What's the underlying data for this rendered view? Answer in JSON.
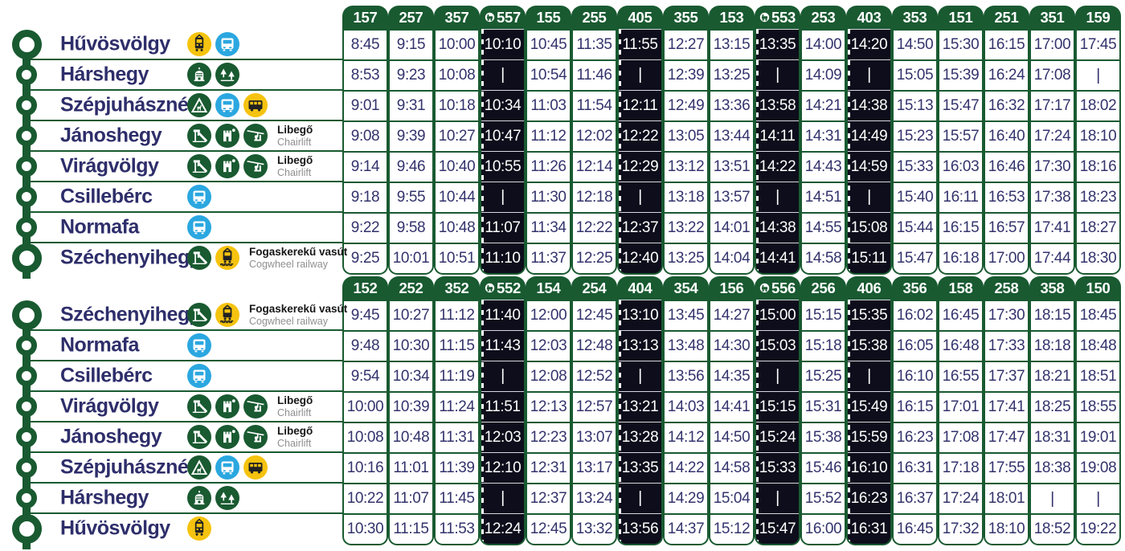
{
  "colors": {
    "brand_green": "#195a31",
    "time_navy": "#33336d",
    "steam_column_black": "#0d0d1b",
    "bus_blue": "#2ba7e0",
    "tram_yellow": "#f5c30f"
  },
  "notes": {
    "chairlift": {
      "primary": "Libegő",
      "secondary": "Chairlift"
    },
    "cogwheel": {
      "primary": "Fogaskerekű vasút",
      "secondary": "Cogwheel railway"
    }
  },
  "tables": [
    {
      "direction": "Hűvösvölgy → Széchenyihegy",
      "trains": [
        {
          "number": "157",
          "dark": false,
          "steam": false
        },
        {
          "number": "257",
          "dark": false,
          "steam": false
        },
        {
          "number": "357",
          "dark": false,
          "steam": false
        },
        {
          "number": "557",
          "dark": true,
          "steam": true
        },
        {
          "number": "155",
          "dark": false,
          "steam": false
        },
        {
          "number": "255",
          "dark": false,
          "steam": false
        },
        {
          "number": "405",
          "dark": true,
          "steam": false
        },
        {
          "number": "355",
          "dark": false,
          "steam": false
        },
        {
          "number": "153",
          "dark": false,
          "steam": false
        },
        {
          "number": "553",
          "dark": true,
          "steam": true
        },
        {
          "number": "253",
          "dark": false,
          "steam": false
        },
        {
          "number": "403",
          "dark": true,
          "steam": false
        },
        {
          "number": "353",
          "dark": false,
          "steam": false
        },
        {
          "number": "151",
          "dark": false,
          "steam": false
        },
        {
          "number": "251",
          "dark": false,
          "steam": false
        },
        {
          "number": "351",
          "dark": false,
          "steam": false
        },
        {
          "number": "159",
          "dark": false,
          "steam": false
        }
      ],
      "rows": [
        {
          "station": "Hűvösvölgy",
          "terminal": true,
          "icons": [
            "tram-yellow",
            "bus-blue"
          ],
          "note": null,
          "times": [
            "8:45",
            "9:15",
            "10:00",
            "10:10",
            "10:45",
            "11:35",
            "11:55",
            "12:27",
            "13:15",
            "13:35",
            "14:00",
            "14:20",
            "14:50",
            "15:30",
            "16:15",
            "17:00",
            "17:45"
          ]
        },
        {
          "station": "Hárshegy",
          "terminal": false,
          "icons": [
            "tower-green",
            "forest-green"
          ],
          "note": null,
          "times": [
            "8:53",
            "9:23",
            "10:08",
            "|",
            "10:54",
            "11:46",
            "|",
            "12:39",
            "13:25",
            "|",
            "14:09",
            "|",
            "15:05",
            "15:39",
            "16:24",
            "17:08",
            "|"
          ]
        },
        {
          "station": "Szépjuhászné",
          "terminal": false,
          "icons": [
            "house-green",
            "bus-blue",
            "bus-yellow"
          ],
          "note": null,
          "times": [
            "9:01",
            "9:31",
            "10:18",
            "10:34",
            "11:03",
            "11:54",
            "12:11",
            "12:49",
            "13:36",
            "13:58",
            "14:21",
            "14:38",
            "15:13",
            "15:47",
            "16:32",
            "17:17",
            "18:02"
          ]
        },
        {
          "station": "Jánoshegy",
          "terminal": false,
          "icons": [
            "playground-green",
            "lookout-green",
            "chairlift-green"
          ],
          "note": "chairlift",
          "times": [
            "9:08",
            "9:39",
            "10:27",
            "10:47",
            "11:12",
            "12:02",
            "12:22",
            "13:05",
            "13:44",
            "14:11",
            "14:31",
            "14:49",
            "15:23",
            "15:57",
            "16:40",
            "17:24",
            "18:10"
          ]
        },
        {
          "station": "Virágvölgy",
          "terminal": false,
          "icons": [
            "playground-green",
            "lookout-green",
            "chairlift-green"
          ],
          "note": "chairlift",
          "times": [
            "9:14",
            "9:46",
            "10:40",
            "10:55",
            "11:26",
            "12:14",
            "12:29",
            "13:12",
            "13:51",
            "14:22",
            "14:43",
            "14:59",
            "15:33",
            "16:03",
            "16:46",
            "17:30",
            "18:16"
          ]
        },
        {
          "station": "Csillebérc",
          "terminal": false,
          "icons": [
            "bus-blue"
          ],
          "note": null,
          "times": [
            "9:18",
            "9:55",
            "10:44",
            "|",
            "11:30",
            "12:18",
            "|",
            "13:18",
            "13:57",
            "|",
            "14:51",
            "|",
            "15:40",
            "16:11",
            "16:53",
            "17:38",
            "18:23"
          ]
        },
        {
          "station": "Normafa",
          "terminal": false,
          "icons": [
            "bus-blue"
          ],
          "note": null,
          "times": [
            "9:22",
            "9:58",
            "10:48",
            "11:07",
            "11:34",
            "12:22",
            "12:37",
            "13:22",
            "14:01",
            "14:38",
            "14:55",
            "15:08",
            "15:44",
            "16:15",
            "16:57",
            "17:41",
            "18:27"
          ]
        },
        {
          "station": "Széchenyihegy",
          "terminal": true,
          "icons": [
            "playground-green",
            "cogwheel-yellow"
          ],
          "note": "cogwheel",
          "times": [
            "9:25",
            "10:01",
            "10:51",
            "11:10",
            "11:37",
            "12:25",
            "12:40",
            "13:25",
            "14:04",
            "14:41",
            "14:58",
            "15:11",
            "15:47",
            "16:18",
            "17:00",
            "17:44",
            "18:30"
          ]
        }
      ]
    },
    {
      "direction": "Széchenyihegy → Hűvösvölgy",
      "trains": [
        {
          "number": "152",
          "dark": false,
          "steam": false
        },
        {
          "number": "252",
          "dark": false,
          "steam": false
        },
        {
          "number": "352",
          "dark": false,
          "steam": false
        },
        {
          "number": "552",
          "dark": true,
          "steam": true
        },
        {
          "number": "154",
          "dark": false,
          "steam": false
        },
        {
          "number": "254",
          "dark": false,
          "steam": false
        },
        {
          "number": "404",
          "dark": true,
          "steam": false
        },
        {
          "number": "354",
          "dark": false,
          "steam": false
        },
        {
          "number": "156",
          "dark": false,
          "steam": false
        },
        {
          "number": "556",
          "dark": true,
          "steam": true
        },
        {
          "number": "256",
          "dark": false,
          "steam": false
        },
        {
          "number": "406",
          "dark": true,
          "steam": false
        },
        {
          "number": "356",
          "dark": false,
          "steam": false
        },
        {
          "number": "158",
          "dark": false,
          "steam": false
        },
        {
          "number": "258",
          "dark": false,
          "steam": false
        },
        {
          "number": "358",
          "dark": false,
          "steam": false
        },
        {
          "number": "150",
          "dark": false,
          "steam": false
        }
      ],
      "rows": [
        {
          "station": "Széchenyihegy",
          "terminal": true,
          "icons": [
            "playground-green",
            "cogwheel-yellow"
          ],
          "note": "cogwheel",
          "times": [
            "9:45",
            "10:27",
            "11:12",
            "11:40",
            "12:00",
            "12:45",
            "13:10",
            "13:45",
            "14:27",
            "15:00",
            "15:15",
            "15:35",
            "16:02",
            "16:45",
            "17:30",
            "18:15",
            "18:45"
          ]
        },
        {
          "station": "Normafa",
          "terminal": false,
          "icons": [
            "bus-blue"
          ],
          "note": null,
          "times": [
            "9:48",
            "10:30",
            "11:15",
            "11:43",
            "12:03",
            "12:48",
            "13:13",
            "13:48",
            "14:30",
            "15:03",
            "15:18",
            "15:38",
            "16:05",
            "16:48",
            "17:33",
            "18:18",
            "18:48"
          ]
        },
        {
          "station": "Csillebérc",
          "terminal": false,
          "icons": [
            "bus-blue"
          ],
          "note": null,
          "times": [
            "9:54",
            "10:34",
            "11:19",
            "|",
            "12:08",
            "12:52",
            "|",
            "13:56",
            "14:35",
            "|",
            "15:25",
            "|",
            "16:10",
            "16:55",
            "17:37",
            "18:21",
            "18:51"
          ]
        },
        {
          "station": "Virágvölgy",
          "terminal": false,
          "icons": [
            "playground-green",
            "lookout-green",
            "chairlift-green"
          ],
          "note": "chairlift",
          "times": [
            "10:00",
            "10:39",
            "11:24",
            "11:51",
            "12:13",
            "12:57",
            "13:21",
            "14:03",
            "14:41",
            "15:15",
            "15:31",
            "15:49",
            "16:15",
            "17:01",
            "17:41",
            "18:25",
            "18:55"
          ]
        },
        {
          "station": "Jánoshegy",
          "terminal": false,
          "icons": [
            "playground-green",
            "lookout-green",
            "chairlift-green"
          ],
          "note": "chairlift",
          "times": [
            "10:08",
            "10:48",
            "11:31",
            "12:03",
            "12:23",
            "13:07",
            "13:28",
            "14:12",
            "14:50",
            "15:24",
            "15:38",
            "15:59",
            "16:23",
            "17:08",
            "17:47",
            "18:31",
            "19:01"
          ]
        },
        {
          "station": "Szépjuhászné",
          "terminal": false,
          "icons": [
            "house-green",
            "bus-blue",
            "bus-yellow"
          ],
          "note": null,
          "times": [
            "10:16",
            "11:01",
            "11:39",
            "12:10",
            "12:31",
            "13:17",
            "13:35",
            "14:22",
            "14:58",
            "15:33",
            "15:46",
            "16:10",
            "16:31",
            "17:18",
            "17:55",
            "18:38",
            "19:08"
          ]
        },
        {
          "station": "Hárshegy",
          "terminal": false,
          "icons": [
            "tower-green",
            "forest-green"
          ],
          "note": null,
          "times": [
            "10:22",
            "11:07",
            "11:45",
            "|",
            "12:37",
            "13:24",
            "|",
            "14:29",
            "15:04",
            "|",
            "15:52",
            "16:23",
            "16:37",
            "17:24",
            "18:01",
            "|",
            "|"
          ]
        },
        {
          "station": "Hűvösvölgy",
          "terminal": true,
          "icons": [
            "tram-yellow"
          ],
          "note": null,
          "times": [
            "10:30",
            "11:15",
            "11:53",
            "12:24",
            "12:45",
            "13:32",
            "13:56",
            "14:37",
            "15:12",
            "15:47",
            "16:00",
            "16:31",
            "16:45",
            "17:32",
            "18:10",
            "18:52",
            "19:22"
          ]
        }
      ]
    }
  ]
}
